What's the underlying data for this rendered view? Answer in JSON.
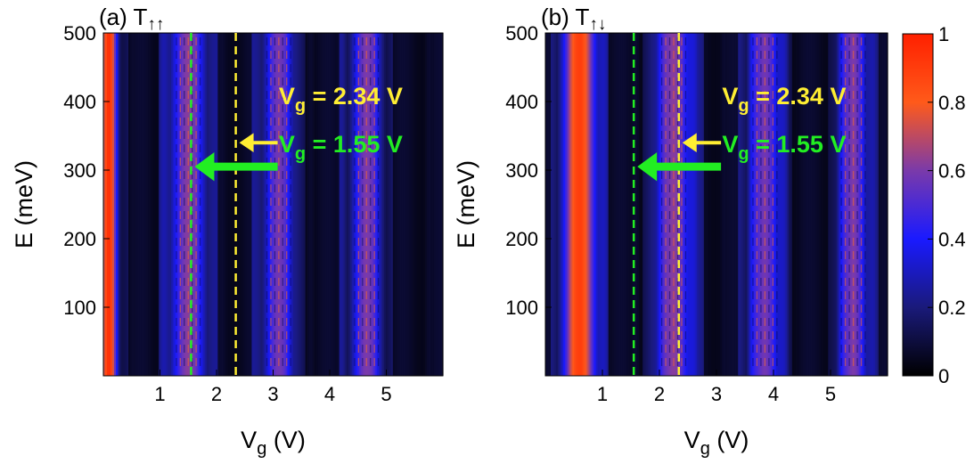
{
  "colors": {
    "heat_stops": [
      "#000000",
      "#1a1a7a",
      "#1a1aff",
      "#7a3aaa",
      "#ff5a1a",
      "#ff2000"
    ],
    "yellow_line": "#ffee33",
    "green_line": "#22ee22",
    "background": "#ffffff"
  },
  "chart_data": [
    {
      "type": "heatmap",
      "title": "(a) T",
      "title_subscript": "↑↑",
      "xlabel": "V",
      "xlabel_sub": "g",
      "xlabel_unit": " (V)",
      "ylabel": "E (meV)",
      "xlim": [
        0,
        6
      ],
      "ylim": [
        0,
        500
      ],
      "xticks": [
        1,
        2,
        3,
        4,
        5
      ],
      "xtick_labels": [
        "1",
        "2",
        "3",
        "4",
        "5"
      ],
      "yticks": [
        100,
        200,
        300,
        400,
        500
      ],
      "ytick_labels": [
        "100",
        "200",
        "300",
        "400",
        "500"
      ],
      "zlim": [
        0,
        1
      ],
      "bands": [
        {
          "center": 0.1,
          "width": 0.32,
          "peak": 0.95
        },
        {
          "center": 1.5,
          "width": 0.7,
          "peak": 0.62
        },
        {
          "center": 3.1,
          "width": 0.6,
          "peak": 0.58
        },
        {
          "center": 4.65,
          "width": 0.6,
          "peak": 0.6
        }
      ],
      "vlines": [
        {
          "x": 1.55,
          "color": "green"
        },
        {
          "x": 2.34,
          "color": "yellow"
        }
      ],
      "annotations": [
        {
          "text": "g = 2.34 V",
          "prefix": "V",
          "color": "yellow",
          "arrow_tip": [
            2.34,
            370
          ],
          "label_anchor": [
            3.1,
            400
          ]
        },
        {
          "text": "g = 1.55 V",
          "prefix": "V",
          "color": "green",
          "arrow_tip": [
            1.55,
            305
          ],
          "label_anchor": [
            3.1,
            330
          ]
        }
      ]
    },
    {
      "type": "heatmap",
      "title": "(b) T",
      "title_subscript": "↑↓",
      "xlabel": "V",
      "xlabel_sub": "g",
      "xlabel_unit": " (V)",
      "ylabel": "E (meV)",
      "xlim": [
        0,
        6
      ],
      "ylim": [
        0,
        500
      ],
      "xticks": [
        1,
        2,
        3,
        4,
        5
      ],
      "xtick_labels": [
        "1",
        "2",
        "3",
        "4",
        "5"
      ],
      "yticks": [
        100,
        200,
        300,
        400,
        500
      ],
      "ytick_labels": [
        "100",
        "200",
        "300",
        "400",
        "500"
      ],
      "zlim": [
        0,
        1
      ],
      "bands": [
        {
          "center": 0.6,
          "width": 0.65,
          "peak": 0.9
        },
        {
          "center": 2.25,
          "width": 0.7,
          "peak": 0.62
        },
        {
          "center": 3.85,
          "width": 0.6,
          "peak": 0.58
        },
        {
          "center": 5.4,
          "width": 0.55,
          "peak": 0.6
        }
      ],
      "vlines": [
        {
          "x": 1.55,
          "color": "green"
        },
        {
          "x": 2.34,
          "color": "yellow"
        }
      ],
      "annotations": [
        {
          "text": "g = 2.34 V",
          "prefix": "V",
          "color": "yellow",
          "arrow_tip": [
            2.34,
            370
          ],
          "label_anchor": [
            3.1,
            400
          ]
        },
        {
          "text": "g = 1.55 V",
          "prefix": "V",
          "color": "green",
          "arrow_tip": [
            1.55,
            305
          ],
          "label_anchor": [
            3.1,
            330
          ]
        }
      ]
    }
  ],
  "colorbar": {
    "ticks": [
      0,
      0.2,
      0.4,
      0.6,
      0.8,
      1
    ],
    "tick_labels": [
      "0",
      "0.2",
      "0.4",
      "0.6",
      "0.8",
      "1"
    ]
  }
}
